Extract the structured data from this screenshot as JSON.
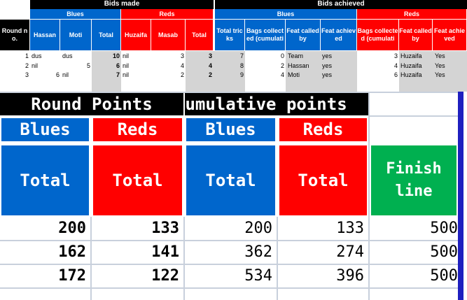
{
  "top": {
    "bids_made": "Bids made",
    "bids_achieved": "Bids achieved",
    "blues": "Blues",
    "reds": "Reds",
    "blues2": "Blues",
    "reds2": "Reds",
    "col_round": "Round no.",
    "col_hassan": "Hassan",
    "col_moti": "Moti",
    "col_total_b": "Total",
    "col_huzaifa": "Huzaifa",
    "col_masab": "Masab",
    "col_total_r": "Total",
    "col_total_tricks": "Total tricks",
    "col_bags_b": "Bags collected (cumulati",
    "col_feat_called_b": "Feat called by",
    "col_feat_ach_b": "Feat achieved",
    "col_bags_r": "Bags collected (cumulati",
    "col_feat_called_r": "Feat called by",
    "col_feat_ach_r": "Feat achieved"
  },
  "rows": [
    {
      "round": "1",
      "hassan": "dus",
      "moti": "dus",
      "total_b": "10",
      "huzaifa": "nil",
      "masab": "3",
      "total_r": "3",
      "tricks": "7",
      "bags_b": "0",
      "called_b": "Team",
      "ach_b": "yes",
      "bags_r": "3",
      "called_r": "Huzaifa",
      "ach_r": "Yes"
    },
    {
      "round": "2",
      "hassan": "nil",
      "moti": "5",
      "total_b": "6",
      "huzaifa": "nil",
      "masab": "4",
      "total_r": "4",
      "tricks": "8",
      "bags_b": "2",
      "called_b": "Hassan",
      "ach_b": "yes",
      "bags_r": "4",
      "called_r": "Huzaifa",
      "ach_r": "Yes"
    },
    {
      "round": "3",
      "hassan": "6",
      "moti": "nil",
      "total_b": "7",
      "huzaifa": "nil",
      "masab": "2",
      "total_r": "2",
      "tricks": "9",
      "bags_b": "4",
      "called_b": "Moti",
      "ach_b": "yes",
      "bags_r": "6",
      "called_r": "Huzaifa",
      "ach_r": "Yes"
    }
  ],
  "bottom": {
    "round_points": "Round Points",
    "cumulative_points": "Cumulative points",
    "blues": "Blues",
    "reds": "Reds",
    "blues2": "Blues",
    "reds2": "Reds",
    "total1": "Total",
    "total2": "Total",
    "total3": "Total",
    "total4": "Total",
    "finish_line": "Finish line"
  },
  "scores": [
    {
      "rp_blue": "200",
      "rp_red": "133",
      "cp_blue": "200",
      "cp_red": "133",
      "finish": "500"
    },
    {
      "rp_blue": "162",
      "rp_red": "141",
      "cp_blue": "362",
      "cp_red": "274",
      "finish": "500"
    },
    {
      "rp_blue": "172",
      "rp_red": "122",
      "cp_blue": "534",
      "cp_red": "396",
      "finish": "500"
    }
  ],
  "colors": {
    "blue": "#0066cc",
    "red": "#ff0000",
    "green": "#00b050",
    "black": "#000000",
    "grey": "#d4d4d4"
  }
}
